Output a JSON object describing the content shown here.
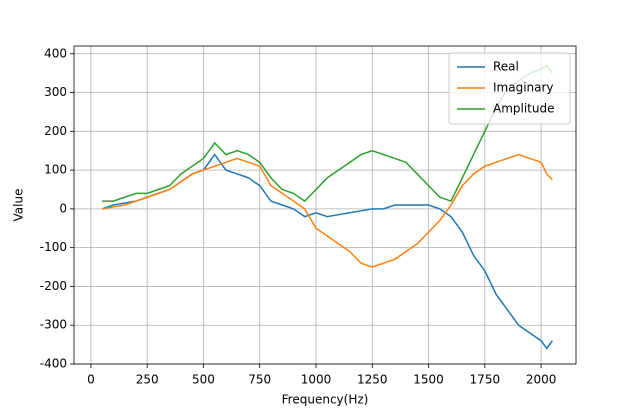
{
  "chart_data": {
    "type": "line",
    "x_label": "Frequency(Hz)",
    "y_label": "Value",
    "x": [
      50,
      100,
      150,
      200,
      250,
      300,
      350,
      400,
      450,
      500,
      550,
      600,
      650,
      700,
      750,
      800,
      850,
      900,
      950,
      1000,
      1050,
      1100,
      1150,
      1200,
      1250,
      1300,
      1350,
      1400,
      1450,
      1500,
      1550,
      1600,
      1650,
      1700,
      1750,
      1800,
      1850,
      1900,
      1950,
      2000,
      2025,
      2050
    ],
    "series": [
      {
        "name": "Real",
        "color": "#1f77b4",
        "values": [
          0,
          10,
          15,
          20,
          30,
          40,
          50,
          70,
          90,
          100,
          140,
          100,
          90,
          80,
          60,
          20,
          10,
          0,
          -20,
          -10,
          -20,
          -15,
          -10,
          -5,
          0,
          0,
          10,
          10,
          10,
          10,
          0,
          -20,
          -60,
          -120,
          -160,
          -220,
          -260,
          -300,
          -320,
          -340,
          -360,
          -340
        ]
      },
      {
        "name": "Imaginary",
        "color": "#ff7f0e",
        "values": [
          0,
          5,
          10,
          20,
          30,
          40,
          50,
          70,
          90,
          100,
          110,
          120,
          130,
          120,
          110,
          60,
          40,
          20,
          0,
          -50,
          -70,
          -90,
          -110,
          -140,
          -150,
          -140,
          -130,
          -110,
          -90,
          -60,
          -30,
          10,
          60,
          90,
          110,
          120,
          130,
          140,
          130,
          120,
          90,
          75
        ]
      },
      {
        "name": "Amplitude",
        "color": "#2ca02c",
        "values": [
          20,
          20,
          30,
          40,
          40,
          50,
          60,
          90,
          110,
          130,
          170,
          140,
          150,
          140,
          120,
          80,
          50,
          40,
          20,
          50,
          80,
          100,
          120,
          140,
          150,
          140,
          130,
          120,
          90,
          60,
          30,
          20,
          80,
          140,
          200,
          260,
          310,
          330,
          350,
          360,
          370,
          350
        ]
      }
    ],
    "xlim": [
      -75,
      2155
    ],
    "ylim": [
      -400,
      420
    ],
    "xticks": [
      0,
      250,
      500,
      750,
      1000,
      1250,
      1500,
      1750,
      2000
    ],
    "yticks": [
      -400,
      -300,
      -200,
      -100,
      0,
      100,
      200,
      300,
      400
    ],
    "grid": true,
    "legend": "upper right"
  }
}
